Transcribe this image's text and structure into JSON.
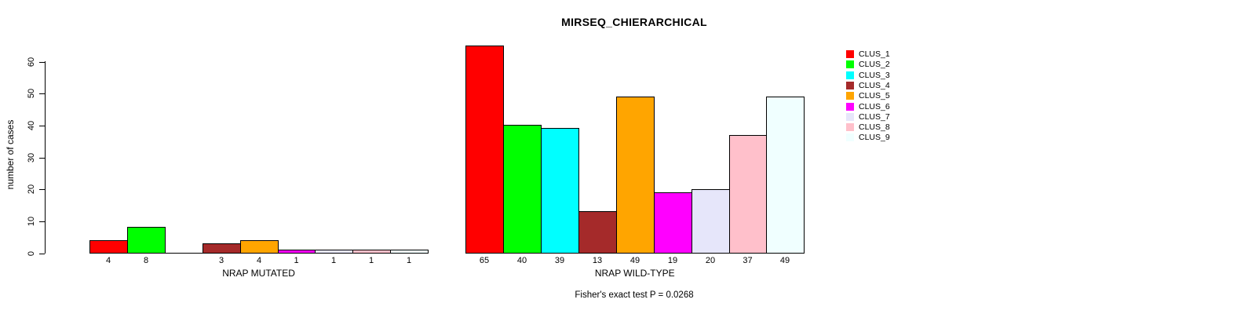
{
  "chart_data": {
    "type": "bar",
    "title": "MIRSEQ_CHIERARCHICAL",
    "ylabel": "number of cases",
    "ylim": [
      0,
      60
    ],
    "yticks": [
      0,
      10,
      20,
      30,
      40,
      50,
      60
    ],
    "grid": false,
    "legend_position": "top-right",
    "series_labels": [
      "CLUS_1",
      "CLUS_2",
      "CLUS_3",
      "CLUS_4",
      "CLUS_5",
      "CLUS_6",
      "CLUS_7",
      "CLUS_8",
      "CLUS_9"
    ],
    "colors": [
      "#FF0000",
      "#00FF00",
      "#00FFFF",
      "#A52A2A",
      "#FFA500",
      "#FF00FF",
      "#E6E6FA",
      "#FFC0CB",
      "#F0FFFF"
    ],
    "groups": [
      {
        "label": "NRAP MUTATED",
        "values": [
          4,
          8,
          0,
          3,
          4,
          1,
          1,
          1,
          1
        ]
      },
      {
        "label": "NRAP WILD-TYPE",
        "values": [
          65,
          40,
          39,
          13,
          49,
          19,
          20,
          37,
          49
        ]
      }
    ],
    "annotation": "Fisher's exact test P = 0.0268"
  }
}
